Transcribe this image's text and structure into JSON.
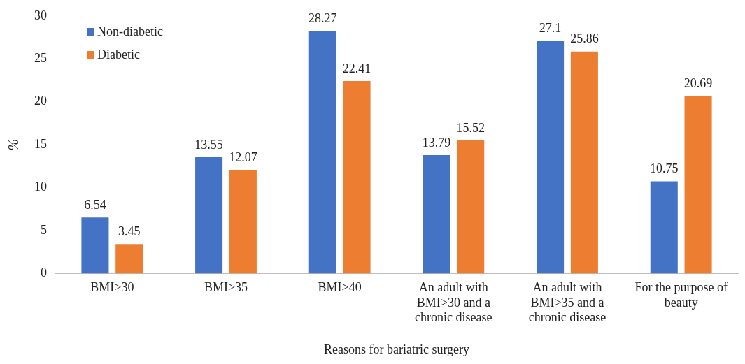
{
  "chart_data": {
    "type": "bar",
    "xlabel": "Reasons for bariatric surgery",
    "ylabel": "%",
    "categories": [
      "BMI>30",
      "BMI>35",
      "BMI>40",
      "An adult with BMI>30 and a chronic disease",
      "An adult with BMI>35 and a chronic disease",
      "For the purpose of beauty"
    ],
    "series": [
      {
        "name": "Non-diabetic",
        "color": "#4472c4",
        "values": [
          6.54,
          13.55,
          28.27,
          13.79,
          27.1,
          10.75
        ]
      },
      {
        "name": "Diabetic",
        "color": "#ed7d31",
        "values": [
          3.45,
          12.07,
          22.41,
          15.52,
          25.86,
          20.69
        ]
      }
    ],
    "ylim": [
      0,
      30
    ],
    "yticks": [
      0,
      5,
      10,
      15,
      20,
      25,
      30
    ],
    "grid": false,
    "legend": "top left",
    "data_labels": true
  }
}
